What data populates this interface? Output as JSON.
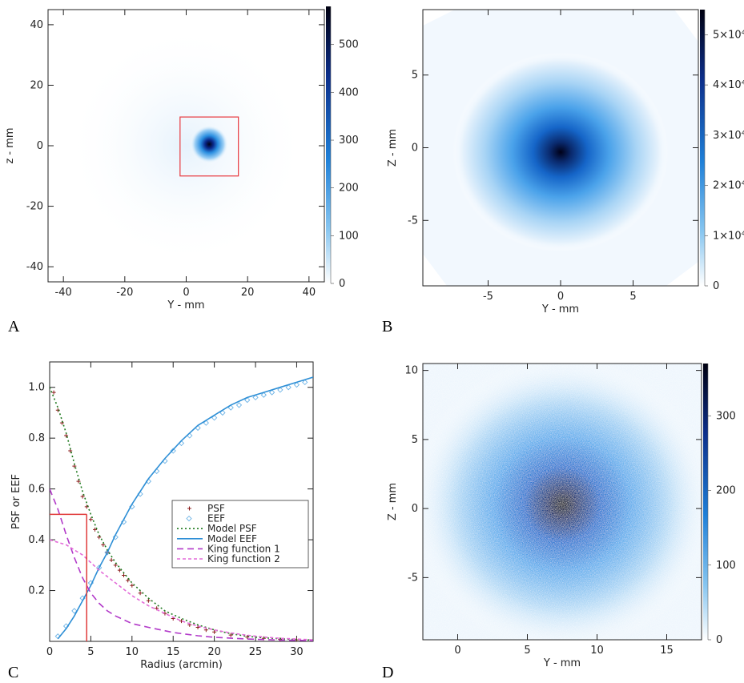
{
  "panel_labels": [
    "A",
    "B",
    "C",
    "D"
  ],
  "chart_data": [
    {
      "panel": "A",
      "type": "heatmap",
      "xlabel": "Y - mm",
      "ylabel": "z - mm",
      "xlim": [
        -45,
        45
      ],
      "ylim": [
        -45,
        45
      ],
      "xticks": [
        -40,
        -20,
        0,
        20,
        40
      ],
      "yticks": [
        -40,
        -20,
        0,
        20,
        40
      ],
      "colorbar": {
        "min": 0,
        "max": 580,
        "ticks": [
          "0",
          "100",
          "200",
          "300",
          "400",
          "500"
        ]
      },
      "peak": {
        "y": 7.5,
        "z": 0.5
      },
      "annotation_box": {
        "y": [
          -2,
          17
        ],
        "z": [
          -10,
          9.5
        ],
        "color": "#e8393f"
      }
    },
    {
      "panel": "B",
      "type": "heatmap",
      "xlabel": "Y - mm",
      "ylabel": "Z - mm",
      "xlim": [
        -9.5,
        9.5
      ],
      "ylim": [
        -9.5,
        9.5
      ],
      "xticks": [
        -5,
        0,
        5
      ],
      "yticks": [
        -5,
        0,
        5
      ],
      "colorbar": {
        "min": 0,
        "max": 55000,
        "ticks": [
          "0",
          "1×10⁴",
          "2×10⁴",
          "3×10⁴",
          "4×10⁴",
          "5×10⁴"
        ]
      },
      "peak": {
        "y": 0,
        "z": -0.3
      }
    },
    {
      "panel": "C",
      "type": "line",
      "xlabel": "Radius (arcmin)",
      "ylabel": "PSF or EEF",
      "xlim": [
        0,
        32
      ],
      "ylim": [
        0,
        1.1
      ],
      "xticks": [
        0,
        5,
        10,
        15,
        20,
        25,
        30
      ],
      "yticks": [
        0.2,
        0.4,
        0.6,
        0.8,
        1.0
      ],
      "legend_position": "center-right",
      "series": [
        {
          "name": "PSF",
          "marker": "plus",
          "color": "#8b1c1c",
          "x": [
            0.5,
            1,
            1.5,
            2,
            2.5,
            3,
            3.5,
            4,
            4.5,
            5,
            5.5,
            6,
            6.5,
            7,
            7.5,
            8,
            8.5,
            9,
            9.5,
            10,
            11,
            12,
            13,
            14,
            15,
            16,
            17,
            18,
            19,
            20,
            22,
            24,
            26,
            28,
            30
          ],
          "y": [
            0.98,
            0.91,
            0.86,
            0.81,
            0.75,
            0.69,
            0.63,
            0.57,
            0.53,
            0.48,
            0.44,
            0.41,
            0.38,
            0.35,
            0.32,
            0.3,
            0.28,
            0.26,
            0.24,
            0.22,
            0.19,
            0.16,
            0.13,
            0.11,
            0.09,
            0.08,
            0.065,
            0.055,
            0.045,
            0.037,
            0.025,
            0.017,
            0.012,
            0.008,
            0.006
          ]
        },
        {
          "name": "EEF",
          "marker": "diamond",
          "color": "#6db3e6",
          "x": [
            1,
            2,
            3,
            4,
            5,
            6,
            7,
            8,
            9,
            10,
            11,
            12,
            13,
            14,
            15,
            16,
            17,
            18,
            19,
            20,
            21,
            22,
            23,
            24,
            25,
            26,
            27,
            28,
            29,
            30,
            31
          ],
          "y": [
            0.02,
            0.06,
            0.12,
            0.17,
            0.23,
            0.29,
            0.35,
            0.41,
            0.47,
            0.53,
            0.58,
            0.63,
            0.67,
            0.71,
            0.75,
            0.78,
            0.81,
            0.84,
            0.86,
            0.88,
            0.9,
            0.92,
            0.93,
            0.95,
            0.96,
            0.97,
            0.98,
            0.99,
            1.0,
            1.01,
            1.02
          ]
        },
        {
          "name": "Model PSF",
          "style": "dotted",
          "color": "#1f7a1f",
          "x": [
            0,
            1,
            2,
            3,
            4,
            5,
            6,
            7,
            8,
            9,
            10,
            12,
            14,
            16,
            18,
            20,
            22,
            24,
            26,
            28,
            30,
            32
          ],
          "y": [
            1.0,
            0.92,
            0.82,
            0.7,
            0.59,
            0.5,
            0.42,
            0.36,
            0.31,
            0.27,
            0.23,
            0.17,
            0.12,
            0.09,
            0.065,
            0.045,
            0.03,
            0.02,
            0.014,
            0.01,
            0.007,
            0.005
          ]
        },
        {
          "name": "Model EEF",
          "style": "solid",
          "color": "#2e8fd6",
          "x": [
            1,
            2,
            3,
            4,
            5,
            6,
            7,
            8,
            9,
            10,
            12,
            14,
            16,
            18,
            20,
            22,
            24,
            26,
            28,
            30,
            32
          ],
          "y": [
            0.01,
            0.05,
            0.1,
            0.16,
            0.22,
            0.29,
            0.35,
            0.42,
            0.48,
            0.54,
            0.64,
            0.72,
            0.79,
            0.85,
            0.89,
            0.93,
            0.96,
            0.98,
            1.0,
            1.02,
            1.04
          ]
        },
        {
          "name": "King function 1",
          "style": "dashed",
          "color": "#b23ac9",
          "x": [
            0,
            1,
            2,
            3,
            4,
            5,
            6,
            7,
            8,
            10,
            12,
            15,
            18,
            20,
            24,
            28,
            32
          ],
          "y": [
            0.6,
            0.52,
            0.42,
            0.33,
            0.25,
            0.19,
            0.15,
            0.12,
            0.1,
            0.07,
            0.055,
            0.035,
            0.022,
            0.016,
            0.009,
            0.005,
            0.003
          ]
        },
        {
          "name": "King function 2",
          "style": "short-dashed",
          "color": "#e36bd8",
          "x": [
            0,
            1,
            2,
            3,
            4,
            5,
            6,
            8,
            10,
            12,
            14,
            16,
            18,
            20,
            22,
            24,
            26,
            28,
            30,
            32
          ],
          "y": [
            0.4,
            0.39,
            0.38,
            0.36,
            0.34,
            0.31,
            0.28,
            0.23,
            0.18,
            0.14,
            0.11,
            0.08,
            0.06,
            0.045,
            0.033,
            0.024,
            0.017,
            0.012,
            0.009,
            0.006
          ]
        }
      ],
      "reference_lines": {
        "color": "#e03a3a",
        "hline_y": 0.5,
        "hline_x_end": 4.5,
        "vline_x": 4.5
      }
    },
    {
      "panel": "D",
      "type": "heatmap",
      "xlabel": "Y - mm",
      "ylabel": "Z - mm",
      "xlim": [
        -2.5,
        17.5
      ],
      "ylim": [
        -9.5,
        10.5
      ],
      "xticks": [
        0,
        5,
        10,
        15
      ],
      "yticks": [
        -5,
        0,
        5,
        10
      ],
      "colorbar": {
        "min": 0,
        "max": 370,
        "ticks": [
          "0",
          "100",
          "200",
          "300"
        ]
      },
      "peak": {
        "y": 7.5,
        "z": 0.3
      }
    }
  ]
}
